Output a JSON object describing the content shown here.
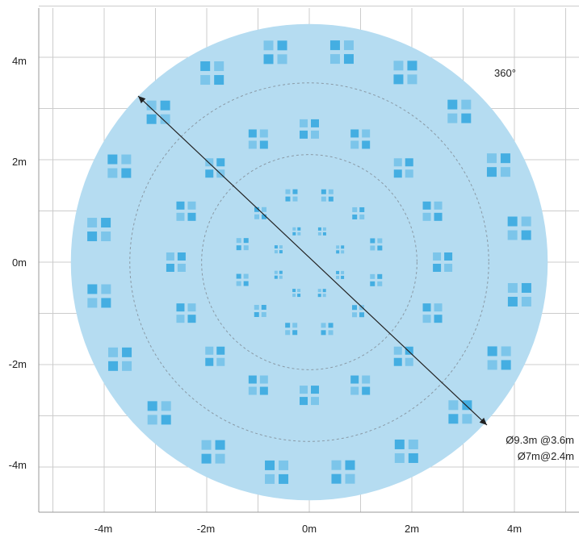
{
  "diagram": {
    "x_ticks": [
      "-4m",
      "-2m",
      "0m",
      "2m",
      "4m"
    ],
    "y_ticks": [
      "4m",
      "2m",
      "0m",
      "-2m",
      "-4m"
    ],
    "angle_label": "360°",
    "diameter_labels": [
      "Ø9.3m @3.6m",
      "Ø7m@2.4m"
    ],
    "colors": {
      "coverage_fill": "#b5dcf1",
      "sensor_dark": "#44aee2",
      "sensor_light": "#7cc5ea",
      "grid": "#cccccc",
      "dashed_ring": "#8a9aa6",
      "measure_line": "#222222"
    },
    "coverage_diameters_m": [
      9.3,
      7,
      4.2
    ]
  }
}
